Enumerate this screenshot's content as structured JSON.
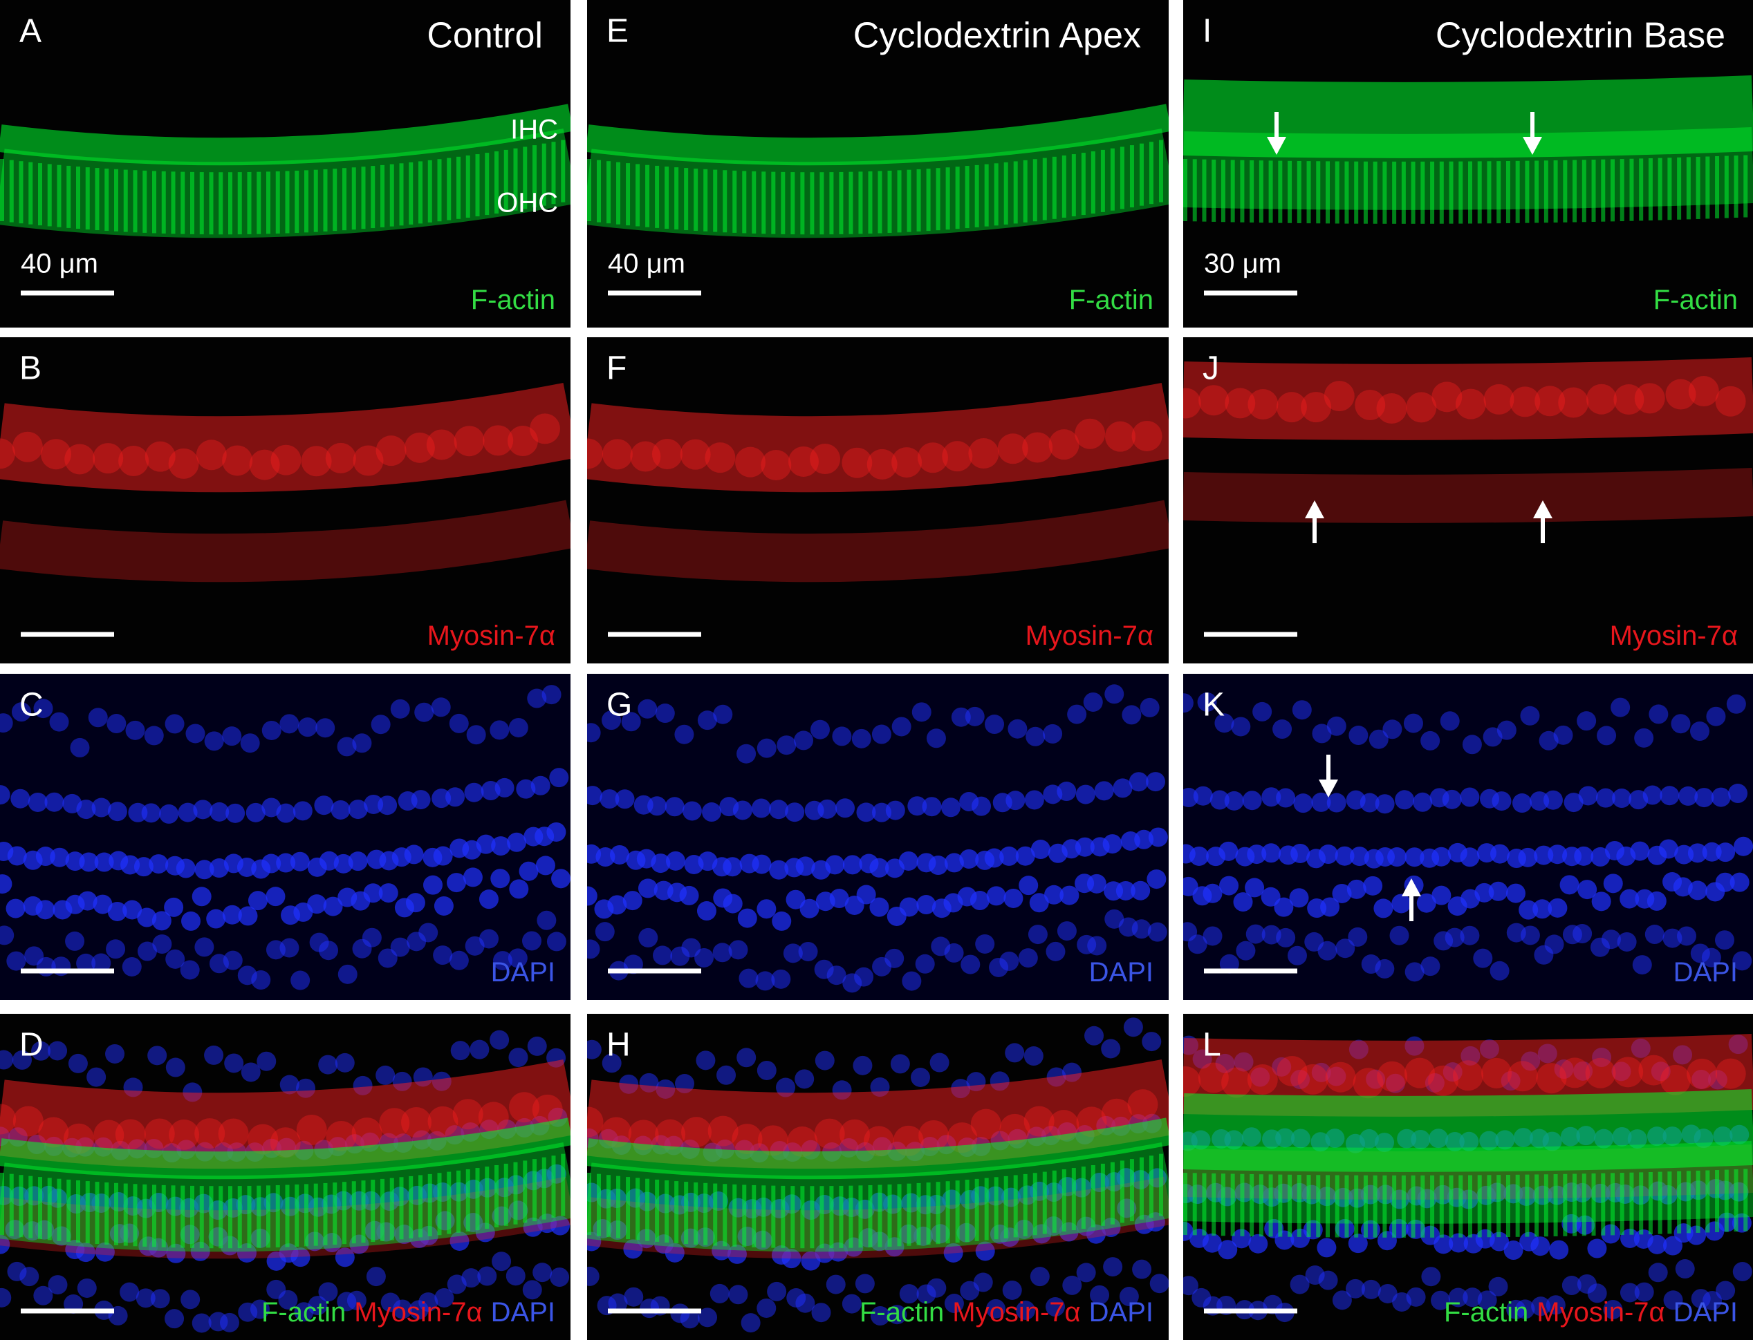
{
  "columns": [
    {
      "title": "Control",
      "panels": [
        {
          "letter": "A",
          "labels": [
            "IHC",
            "OHC"
          ],
          "scale_bar": "40 μm",
          "channels": [
            "F-actin"
          ]
        },
        {
          "letter": "B",
          "channels": [
            "Myosin-7α"
          ]
        },
        {
          "letter": "C",
          "channels": [
            "DAPI"
          ]
        },
        {
          "letter": "D",
          "channels": [
            "F-actin",
            "Myosin-7α",
            "DAPI"
          ]
        }
      ]
    },
    {
      "title": "Cyclodextrin Apex",
      "panels": [
        {
          "letter": "E",
          "scale_bar": "40 μm",
          "channels": [
            "F-actin"
          ]
        },
        {
          "letter": "F",
          "channels": [
            "Myosin-7α"
          ]
        },
        {
          "letter": "G",
          "channels": [
            "DAPI"
          ]
        },
        {
          "letter": "H",
          "channels": [
            "F-actin",
            "Myosin-7α",
            "DAPI"
          ]
        }
      ]
    },
    {
      "title": "Cyclodextrin Base",
      "panels": [
        {
          "letter": "I",
          "scale_bar": "30 μm",
          "channels": [
            "F-actin"
          ]
        },
        {
          "letter": "J",
          "channels": [
            "Myosin-7α"
          ]
        },
        {
          "letter": "K",
          "channels": [
            "DAPI"
          ]
        },
        {
          "letter": "L",
          "channels": [
            "F-actin",
            "Myosin-7α",
            "DAPI"
          ]
        }
      ]
    }
  ]
}
